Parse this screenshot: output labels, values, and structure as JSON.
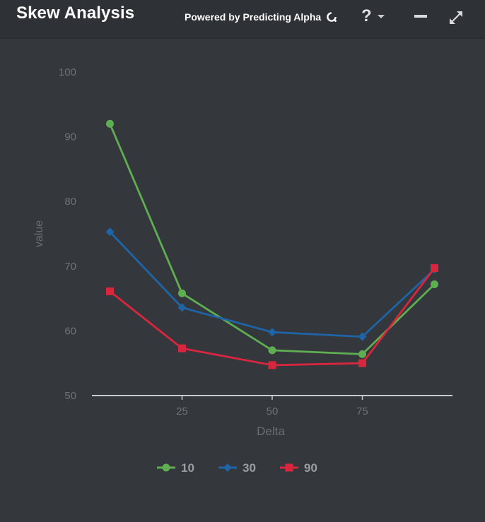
{
  "header": {
    "title": "Skew Analysis",
    "powered_by": "Powered by Predicting Alpha",
    "logo_icon": "predicting-alpha-logo-icon",
    "help_label": "?",
    "help_icon": "help-icon",
    "minimize_icon": "minimize-icon",
    "expand_icon": "expand-icon"
  },
  "colors": {
    "background": "#34373c",
    "header_background": "#2e3136",
    "axis": "#c8cacd",
    "tick_label": "#6f7378",
    "axis_title": "#6a6e73",
    "legend_text": "#9a9da1"
  },
  "chart_data": {
    "type": "line",
    "title": "",
    "xlabel": "Delta",
    "ylabel": "value",
    "xlim": [
      0,
      100
    ],
    "ylim": [
      50,
      100
    ],
    "x_ticks": [
      25,
      50,
      75
    ],
    "y_ticks": [
      50,
      60,
      70,
      80,
      90,
      100
    ],
    "grid": false,
    "legend_position": "bottom-center",
    "series": [
      {
        "name": "10",
        "color": "#5fae52",
        "marker": "circle",
        "points": [
          [
            5,
            92
          ],
          [
            25,
            65.8
          ],
          [
            50,
            57
          ],
          [
            75,
            56.4
          ],
          [
            95,
            67.2
          ]
        ]
      },
      {
        "name": "30",
        "color": "#1e64a6",
        "marker": "diamond",
        "points": [
          [
            5,
            75.3
          ],
          [
            25,
            63.6
          ],
          [
            50,
            59.8
          ],
          [
            75,
            59.1
          ],
          [
            95,
            69.5
          ]
        ]
      },
      {
        "name": "90",
        "color": "#d9263f",
        "marker": "square",
        "points": [
          [
            5,
            66.1
          ],
          [
            25,
            57.3
          ],
          [
            50,
            54.7
          ],
          [
            75,
            55
          ],
          [
            95,
            69.7
          ]
        ]
      }
    ]
  }
}
